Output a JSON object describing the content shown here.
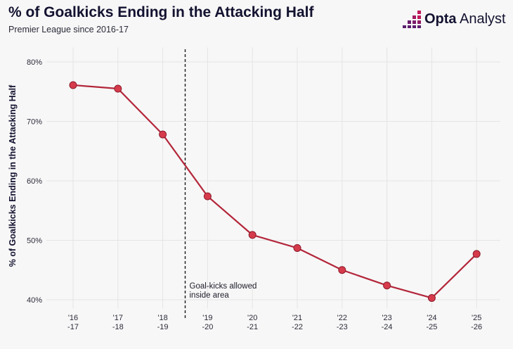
{
  "header": {
    "title": "% of Goalkicks Ending in the Attacking Half",
    "subtitle": "Premier League since 2016-17"
  },
  "brand": {
    "name_strong": "Opta",
    "name_light": " Analyst",
    "logo_icon": "opta-dots-icon"
  },
  "colors": {
    "line": "#b3263a",
    "marker_fill": "#d63b4c",
    "marker_stroke": "#8e1c2c",
    "grid": "#e4e4e6",
    "brand_pink": "#c2185b",
    "brand_purple": "#5b1e6d"
  },
  "chart_data": {
    "type": "line",
    "title": "% of Goalkicks Ending in the Attacking Half",
    "subtitle": "Premier League since 2016-17",
    "xlabel": "",
    "ylabel": "% of Goalkicks Ending in the Attacking Half",
    "categories": [
      [
        "'16",
        "-17"
      ],
      [
        "'17",
        "-18"
      ],
      [
        "'18",
        "-19"
      ],
      [
        "'19",
        "-20"
      ],
      [
        "'20",
        "-21"
      ],
      [
        "'21",
        "-22"
      ],
      [
        "'22",
        "-23"
      ],
      [
        "'23",
        "-24"
      ],
      [
        "'24",
        "-25"
      ],
      [
        "'25",
        "-26"
      ]
    ],
    "values": [
      76.1,
      75.5,
      67.8,
      57.4,
      50.9,
      48.7,
      45.0,
      42.4,
      40.3,
      47.7
    ],
    "ylim": [
      39,
      81
    ],
    "yticks": [
      40,
      50,
      60,
      70,
      80
    ],
    "ytick_labels": [
      "40%",
      "50%",
      "60%",
      "70%",
      "80%"
    ],
    "grid": true,
    "annotation": {
      "between_index": 2.5,
      "lines": [
        "Goal-kicks allowed",
        "inside area"
      ]
    }
  }
}
